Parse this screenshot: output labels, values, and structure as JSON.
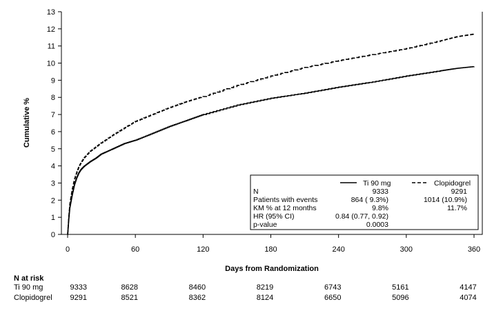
{
  "chart_data": {
    "type": "line",
    "title": "",
    "xlabel": "Days from Randomization",
    "ylabel": "Cumulative %",
    "xlim": [
      0,
      360
    ],
    "ylim": [
      0,
      13
    ],
    "xticks": [
      0,
      60,
      120,
      180,
      240,
      300,
      360
    ],
    "yticks": [
      0,
      1,
      2,
      3,
      4,
      5,
      6,
      7,
      8,
      9,
      10,
      11,
      12,
      13
    ],
    "grid": false,
    "legend_position": "bottom-right",
    "series": [
      {
        "name": "Ti 90 mg",
        "style": "solid",
        "color": "#000000",
        "x": [
          0,
          1,
          2,
          4,
          6,
          8,
          10,
          12,
          15,
          20,
          25,
          30,
          40,
          50,
          60,
          75,
          90,
          105,
          120,
          150,
          180,
          210,
          240,
          270,
          300,
          330,
          345,
          360
        ],
        "y": [
          0,
          0.9,
          1.6,
          2.3,
          2.9,
          3.3,
          3.6,
          3.8,
          4.0,
          4.25,
          4.45,
          4.7,
          5.0,
          5.3,
          5.5,
          5.9,
          6.3,
          6.65,
          7.0,
          7.55,
          7.95,
          8.25,
          8.6,
          8.9,
          9.25,
          9.55,
          9.7,
          9.8
        ]
      },
      {
        "name": "Clopidogrel",
        "style": "dashed",
        "color": "#000000",
        "x": [
          0,
          1,
          2,
          4,
          6,
          8,
          10,
          12,
          15,
          20,
          25,
          30,
          40,
          50,
          60,
          75,
          90,
          105,
          120,
          150,
          180,
          210,
          240,
          270,
          300,
          330,
          345,
          360
        ],
        "y": [
          0,
          1.0,
          1.8,
          2.6,
          3.2,
          3.6,
          3.95,
          4.2,
          4.5,
          4.85,
          5.1,
          5.35,
          5.8,
          6.2,
          6.6,
          7.0,
          7.4,
          7.75,
          8.05,
          8.7,
          9.25,
          9.75,
          10.15,
          10.5,
          10.85,
          11.3,
          11.55,
          11.7
        ]
      }
    ],
    "legend_table": {
      "row_labels": [
        "N",
        "Patients with events",
        "KM % at 12 months",
        "HR (95% CI)",
        "p-value"
      ],
      "col1": [
        "9333",
        "864 ( 9.3%)",
        "9.8%",
        "0.84 (0.77, 0.92)",
        "0.0003"
      ],
      "col2": [
        "9291",
        "1014 (10.9%)",
        "11.7%",
        "",
        ""
      ]
    },
    "at_risk": {
      "title": "N at risk",
      "rows": [
        {
          "label": "Ti 90 mg",
          "values": [
            "9333",
            "8628",
            "8460",
            "8219",
            "6743",
            "5161",
            "4147"
          ]
        },
        {
          "label": "Clopidogrel",
          "values": [
            "9291",
            "8521",
            "8362",
            "8124",
            "6650",
            "5096",
            "4074"
          ]
        }
      ]
    }
  }
}
